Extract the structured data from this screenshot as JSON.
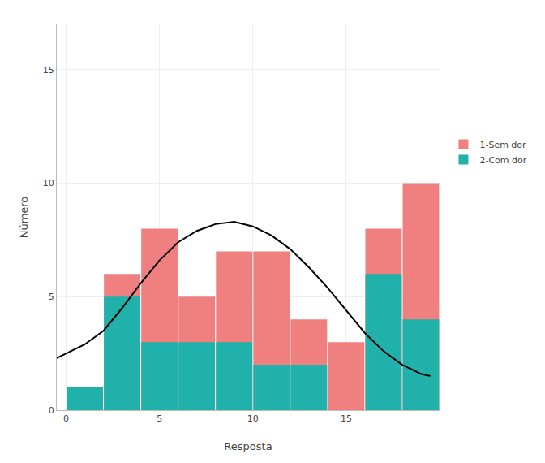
{
  "chart_data": {
    "type": "histogram",
    "xlabel": "Resposta",
    "ylabel": "Número",
    "bins": [
      0,
      2,
      4,
      6,
      8,
      10,
      12,
      14,
      16,
      18,
      20
    ],
    "stacked": false,
    "series": [
      {
        "name": "1-Sem dor",
        "type": "bar",
        "color": "#F08080",
        "values": [
          1,
          6,
          8,
          5,
          7,
          7,
          4,
          3,
          8,
          10
        ]
      },
      {
        "name": "2-Com dor",
        "type": "bar",
        "color": "#20B2AA",
        "values": [
          1,
          5,
          3,
          3,
          3,
          2,
          2,
          0,
          6,
          4
        ]
      },
      {
        "type": "line",
        "color": "#000000",
        "x": [
          -0.5,
          0,
          1,
          2,
          3,
          4,
          5,
          6,
          7,
          8,
          9,
          10,
          11,
          12,
          13,
          14,
          15,
          16,
          17,
          18,
          19,
          19.5
        ],
        "values": [
          2.3,
          2.5,
          2.9,
          3.5,
          4.5,
          5.6,
          6.6,
          7.4,
          7.9,
          8.2,
          8.3,
          8.1,
          7.7,
          7.1,
          6.3,
          5.4,
          4.4,
          3.4,
          2.6,
          2.0,
          1.6,
          1.5
        ]
      }
    ],
    "xlim": [
      -0.5,
      20
    ],
    "xticks": [
      0,
      5,
      10,
      15
    ],
    "ylim": [
      0,
      17
    ],
    "yticks": [
      0,
      5,
      10,
      15
    ],
    "grid": true,
    "legend": "right"
  }
}
